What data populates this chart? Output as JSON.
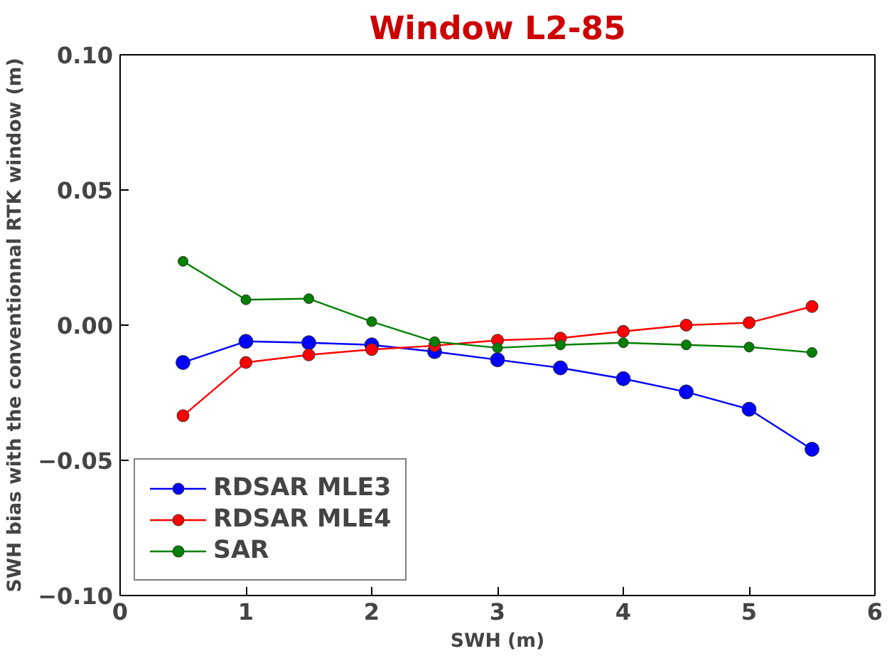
{
  "chart_data": {
    "type": "line",
    "title": "Window L2-85",
    "xlabel": "SWH (m)",
    "ylabel": "SWH bias with the conventionnal RTK window (m)",
    "x": [
      0.5,
      1.0,
      1.5,
      2.0,
      2.5,
      3.0,
      3.5,
      4.0,
      4.5,
      5.0,
      5.5
    ],
    "series": [
      {
        "name": "RDSAR MLE3",
        "color": "#0000ff",
        "values": [
          -0.0138,
          -0.006,
          -0.0065,
          -0.0073,
          -0.0098,
          -0.0128,
          -0.0158,
          -0.0198,
          -0.0247,
          -0.0311,
          -0.0459
        ]
      },
      {
        "name": "RDSAR MLE4",
        "color": "#ff0000",
        "values": [
          -0.0335,
          -0.0138,
          -0.011,
          -0.009,
          -0.0076,
          -0.0056,
          -0.0048,
          -0.0023,
          0.0,
          0.0009,
          0.0069
        ]
      },
      {
        "name": "SAR",
        "color": "#008000",
        "values": [
          0.0236,
          0.0094,
          0.0098,
          0.0013,
          -0.0061,
          -0.0084,
          -0.0073,
          -0.0065,
          -0.0073,
          -0.0081,
          -0.0101
        ]
      }
    ],
    "xlim": [
      0,
      6
    ],
    "xticks": [
      0,
      1,
      2,
      3,
      4,
      5,
      6
    ],
    "ylim": [
      -0.1,
      0.1
    ],
    "yticks": [
      {
        "value": -0.1,
        "label": "−0.10"
      },
      {
        "value": -0.05,
        "label": "−0.05"
      },
      {
        "value": 0,
        "label": "0.00"
      },
      {
        "value": 0.05,
        "label": "0.05"
      },
      {
        "value": 0.1,
        "label": "0.10"
      }
    ],
    "grid": false,
    "legend": "bottom left",
    "marker": "circle",
    "line_style": "solid"
  }
}
